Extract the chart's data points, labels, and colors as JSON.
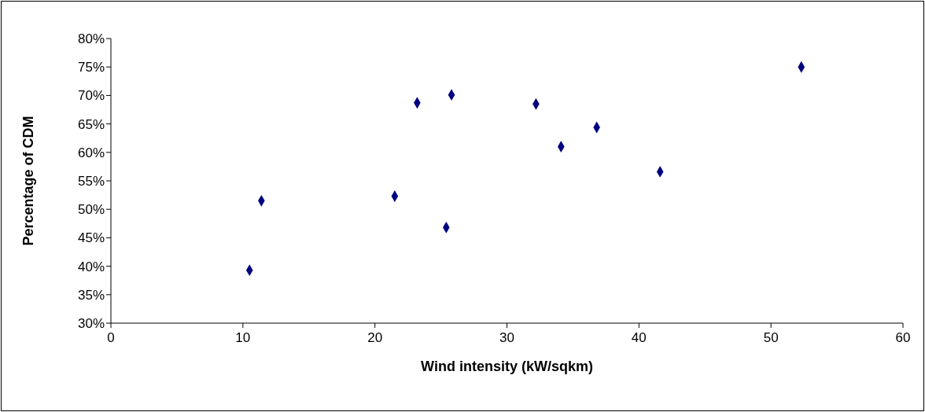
{
  "chart_data": {
    "type": "scatter",
    "xlabel": "Wind intensity (kW/sqkm)",
    "ylabel": "Percentage of CDM",
    "x": [
      10.5,
      11.4,
      21.5,
      23.2,
      25.4,
      25.8,
      32.2,
      34.1,
      36.8,
      41.6,
      52.3
    ],
    "series": [
      {
        "color": "#000080",
        "values": [
          39.3,
          51.5,
          52.3,
          68.7,
          46.8,
          70.1,
          68.5,
          61.0,
          64.4,
          56.6,
          75.0
        ]
      }
    ],
    "xlim": [
      0,
      60
    ],
    "xticks": [
      0,
      10,
      20,
      30,
      40,
      50,
      60
    ],
    "ylim": [
      30,
      80
    ],
    "yticks": [
      {
        "value": 30,
        "label": "30%"
      },
      {
        "value": 35,
        "label": "35%"
      },
      {
        "value": 40,
        "label": "40%"
      },
      {
        "value": 45,
        "label": "45%"
      },
      {
        "value": 50,
        "label": "50%"
      },
      {
        "value": 55,
        "label": "55%"
      },
      {
        "value": 60,
        "label": "60%"
      },
      {
        "value": 65,
        "label": "65%"
      },
      {
        "value": 70,
        "label": "70%"
      },
      {
        "value": 75,
        "label": "75%"
      },
      {
        "value": 80,
        "label": "80%"
      }
    ],
    "grid": false,
    "legend": false,
    "marker": "diamond"
  }
}
